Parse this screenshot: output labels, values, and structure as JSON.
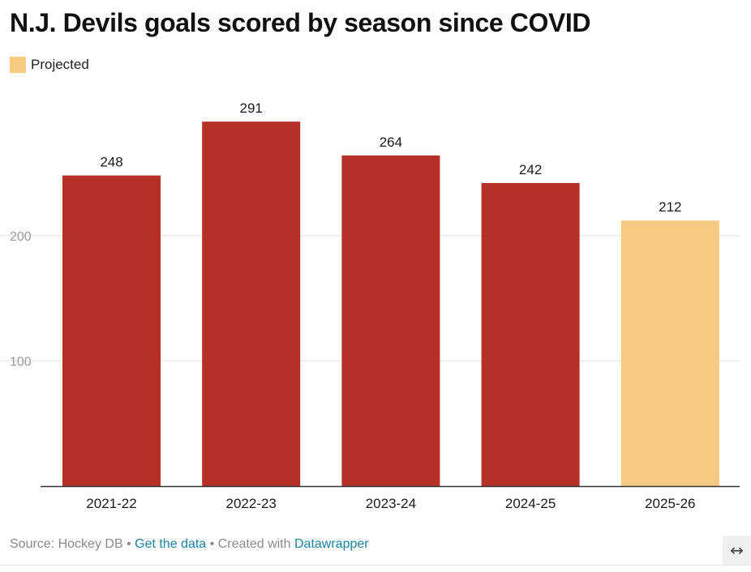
{
  "title": "N.J. Devils goals scored by season since COVID",
  "legend": [
    {
      "label": "Projected",
      "color": "#f6ca82"
    }
  ],
  "footer": {
    "source_label": "Source: Hockey DB",
    "separator": "•",
    "data_link": "Get the data",
    "created_label": "Created with",
    "tool_link": "Datawrapper"
  },
  "expand_icon": "↔",
  "colors": {
    "actual": "#b53128",
    "projected": "#f6ca82",
    "grid": "#e3e3e3",
    "axis": "#333333",
    "tick_text": "#9a9a9a",
    "label_text": "#1a1a1a"
  },
  "chart_data": {
    "type": "bar",
    "title": "N.J. Devils goals scored by season since COVID",
    "xlabel": "",
    "ylabel": "",
    "categories": [
      "2021-22",
      "2022-23",
      "2023-24",
      "2024-25",
      "2025-26"
    ],
    "values": [
      248,
      291,
      264,
      242,
      212
    ],
    "projected": [
      false,
      false,
      false,
      false,
      true
    ],
    "value_labels": [
      "248",
      "291",
      "264",
      "242",
      "212"
    ],
    "yticks": [
      100,
      200
    ],
    "ytick_labels": [
      "100",
      "200"
    ],
    "ylim": [
      0,
      315
    ],
    "grid": true,
    "legend_position": "top-left"
  }
}
